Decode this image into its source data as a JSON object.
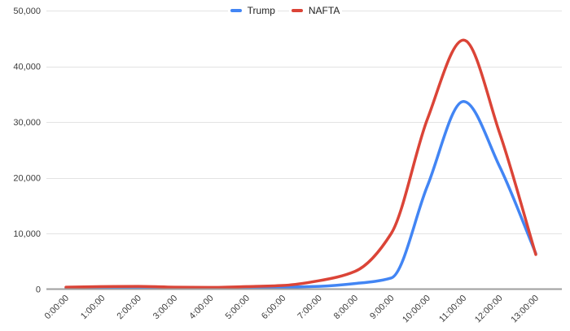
{
  "chart_data": {
    "type": "line",
    "title": "",
    "xlabel": "",
    "ylabel": "",
    "line_style": "smooth",
    "grid": true,
    "legend_position": "top-center",
    "x_categories": [
      "0:00:00",
      "1:00:00",
      "2:00:00",
      "3:00:00",
      "4:00:00",
      "5:00:00",
      "6:00:00",
      "7:00:00",
      "8:00:00",
      "9:00:00",
      "10:00:00",
      "11:00:00",
      "12:00:00",
      "13:00:00"
    ],
    "series": [
      {
        "name": "Trump",
        "color": "#4285F4",
        "values": [
          200,
          250,
          300,
          250,
          200,
          250,
          350,
          500,
          1000,
          2000,
          18500,
          33700,
          22000,
          6400
        ]
      },
      {
        "name": "NAFTA",
        "color": "#DB4437",
        "values": [
          350,
          450,
          500,
          350,
          300,
          450,
          650,
          1500,
          3200,
          10000,
          30500,
          44700,
          28000,
          6200
        ]
      }
    ],
    "ylim": [
      0,
      50000
    ],
    "y_tick_values": [
      0,
      10000,
      20000,
      30000,
      40000,
      50000
    ],
    "y_tick_labels": [
      "0",
      "10,000",
      "20,000",
      "30,000",
      "40,000",
      "50,000"
    ]
  },
  "colors": {
    "background": "#FFFFFF",
    "gridline": "#E3E3E3",
    "axis_line": "#9E9E9E",
    "tick_label": "#3C3C3C",
    "legend_label": "#212121"
  }
}
